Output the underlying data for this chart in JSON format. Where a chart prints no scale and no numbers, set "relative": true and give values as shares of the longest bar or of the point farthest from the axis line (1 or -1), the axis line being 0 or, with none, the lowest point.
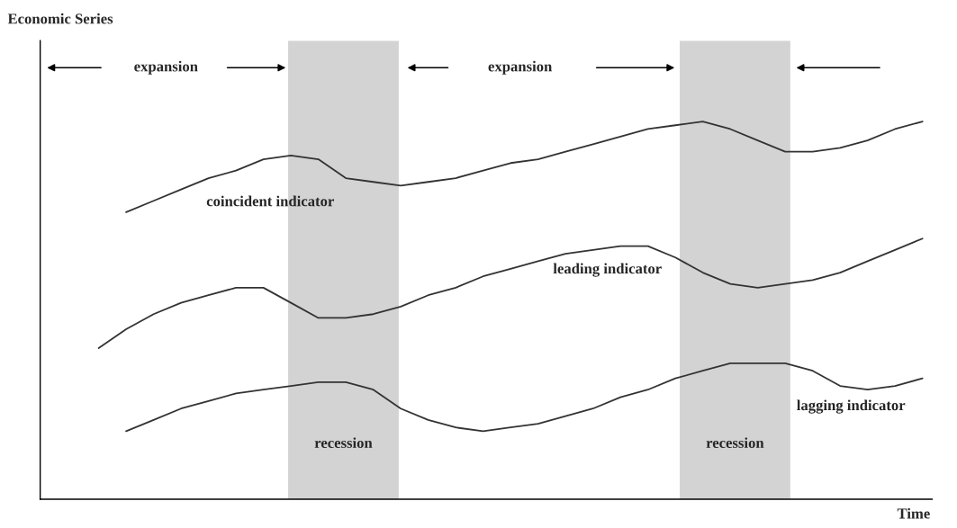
{
  "chart_data": {
    "type": "line",
    "relative": true,
    "xlabel": "Time",
    "categories": [
      null,
      null,
      null,
      null,
      null,
      null,
      null,
      null,
      null,
      null,
      null,
      null,
      null,
      null,
      null,
      null,
      null,
      null,
      null,
      null,
      null,
      null,
      null,
      null,
      null,
      null,
      null,
      null,
      null,
      null,
      null
    ],
    "series": [
      {
        "color": "#333333",
        "values": [
          null,
          0.76,
          0.79,
          0.82,
          0.85,
          0.87,
          0.9,
          0.91,
          0.9,
          0.85,
          0.84,
          0.83,
          0.84,
          0.85,
          0.87,
          0.89,
          0.9,
          0.92,
          0.94,
          0.96,
          0.98,
          0.99,
          1,
          0.98,
          0.95,
          0.92,
          0.92,
          0.93,
          0.95,
          0.98,
          1
        ]
      },
      {
        "color": "#333333",
        "values": [
          0.4,
          0.45,
          0.49,
          0.52,
          0.54,
          0.56,
          0.56,
          0.52,
          0.48,
          0.48,
          0.49,
          0.51,
          0.54,
          0.56,
          0.59,
          0.61,
          0.63,
          0.65,
          0.66,
          0.67,
          0.67,
          0.64,
          0.6,
          0.57,
          0.56,
          0.57,
          0.58,
          0.6,
          0.63,
          0.66,
          0.69
        ]
      },
      {
        "color": "#333333",
        "values": [
          null,
          0.18,
          0.21,
          0.24,
          0.26,
          0.28,
          0.29,
          0.3,
          0.31,
          0.31,
          0.29,
          0.24,
          0.21,
          0.19,
          0.18,
          0.19,
          0.2,
          0.22,
          0.24,
          0.27,
          0.29,
          0.32,
          0.34,
          0.36,
          0.36,
          0.36,
          0.34,
          0.3,
          0.29,
          0.3,
          0.32
        ]
      }
    ],
    "annotations": [
      "Economic Series",
      "expansion",
      "expansion",
      "coincident indicator",
      "leading indicator",
      "lagging indicator",
      "recession",
      "recession"
    ]
  }
}
